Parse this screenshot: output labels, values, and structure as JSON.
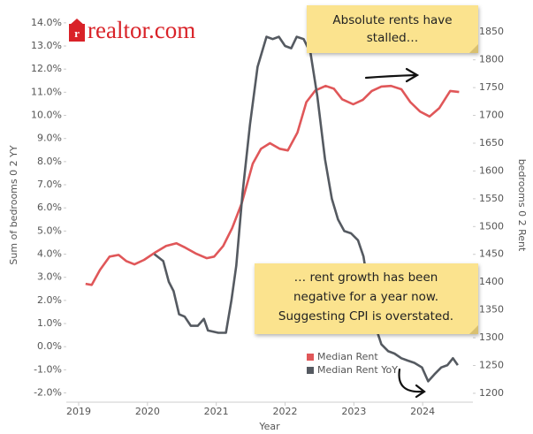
{
  "chart_data": {
    "type": "line",
    "logo": "realtor.com",
    "x_label": "Year",
    "y_label": "Sum of bedrooms 0 2 YY",
    "y2_label": "bedrooms 0 2 Rent",
    "xlim": [
      2018.82,
      2024.73
    ],
    "xticks": [
      2019,
      2020,
      2021,
      2022,
      2023,
      2024
    ],
    "ylim": [
      -2.4,
      14.3
    ],
    "yticks": [
      {
        "value": -2,
        "label": "-2.0%"
      },
      {
        "value": -1,
        "label": "-1.0%"
      },
      {
        "value": 0,
        "label": "0.0%"
      },
      {
        "value": 1,
        "label": "1.0%"
      },
      {
        "value": 2,
        "label": "2.0%"
      },
      {
        "value": 3,
        "label": "3.0%"
      },
      {
        "value": 4,
        "label": "4.0%"
      },
      {
        "value": 5,
        "label": "5.0%"
      },
      {
        "value": 6,
        "label": "6.0%"
      },
      {
        "value": 7,
        "label": "7.0%"
      },
      {
        "value": 8,
        "label": "8.0%"
      },
      {
        "value": 9,
        "label": "9.0%"
      },
      {
        "value": 10,
        "label": "10.0%"
      },
      {
        "value": 11,
        "label": "11.0%"
      },
      {
        "value": 12,
        "label": "12.0%"
      },
      {
        "value": 13,
        "label": "13.0%"
      },
      {
        "value": 14,
        "label": "14.0%"
      }
    ],
    "y2lim": [
      1184,
      1879
    ],
    "y2ticks": [
      1200,
      1250,
      1300,
      1350,
      1400,
      1450,
      1500,
      1550,
      1600,
      1650,
      1700,
      1750,
      1800,
      1850
    ],
    "grid": false,
    "legend": "bottom-right",
    "series": [
      {
        "name": "Median Rent",
        "color": "#e05759",
        "axis": "y2",
        "x": [
          2019.1,
          2019.19,
          2019.31,
          2019.45,
          2019.58,
          2019.69,
          2019.81,
          2019.95,
          2020.12,
          2020.27,
          2020.42,
          2020.55,
          2020.71,
          2020.86,
          2020.97,
          2021.1,
          2021.23,
          2021.37,
          2021.53,
          2021.65,
          2021.78,
          2021.92,
          2022.04,
          2022.18,
          2022.31,
          2022.44,
          2022.59,
          2022.71,
          2022.83,
          2022.99,
          2023.13,
          2023.26,
          2023.4,
          2023.54,
          2023.69,
          2023.82,
          2023.96,
          2024.1,
          2024.24,
          2024.4,
          2024.53
        ],
        "values": [
          1397,
          1395,
          1422,
          1446,
          1449,
          1438,
          1432,
          1440,
          1454,
          1465,
          1470,
          1462,
          1451,
          1443,
          1446,
          1465,
          1497,
          1542,
          1613,
          1640,
          1650,
          1640,
          1637,
          1669,
          1724,
          1745,
          1753,
          1748,
          1729,
          1720,
          1728,
          1744,
          1752,
          1753,
          1747,
          1724,
          1707,
          1698,
          1713,
          1744,
          1742
        ]
      },
      {
        "name": "Median Rent YoY",
        "color": "#555a61",
        "axis": "y",
        "x": [
          2020.1,
          2020.23,
          2020.31,
          2020.38,
          2020.46,
          2020.54,
          2020.63,
          2020.73,
          2020.82,
          2020.88,
          2021.03,
          2021.14,
          2021.22,
          2021.29,
          2021.38,
          2021.49,
          2021.6,
          2021.73,
          2021.82,
          2021.91,
          2022.0,
          2022.09,
          2022.17,
          2022.27,
          2022.37,
          2022.47,
          2022.58,
          2022.68,
          2022.77,
          2022.86,
          2022.96,
          2023.06,
          2023.14,
          2023.22,
          2023.31,
          2023.4,
          2023.5,
          2023.59,
          2023.69,
          2023.78,
          2023.88,
          2023.99,
          2024.08,
          2024.17,
          2024.27,
          2024.36,
          2024.44,
          2024.51
        ],
        "values": [
          4.0,
          3.7,
          2.8,
          2.4,
          1.4,
          1.3,
          0.9,
          0.9,
          1.2,
          0.7,
          0.6,
          0.6,
          2.0,
          3.5,
          6.6,
          9.6,
          12.1,
          13.4,
          13.3,
          13.4,
          13.0,
          12.9,
          13.4,
          13.3,
          12.7,
          10.8,
          8.1,
          6.4,
          5.5,
          5.0,
          4.9,
          4.6,
          3.9,
          2.4,
          0.9,
          0.1,
          -0.2,
          -0.3,
          -0.5,
          -0.6,
          -0.7,
          -0.9,
          -1.5,
          -1.2,
          -0.9,
          -0.8,
          -0.5,
          -0.8
        ]
      }
    ],
    "annotations": [
      {
        "lines": [
          "Absolute rents have",
          "stalled…"
        ]
      },
      {
        "lines": [
          "… rent growth has been",
          "negative for a year now.",
          "Suggesting CPI is overstated."
        ]
      }
    ]
  }
}
